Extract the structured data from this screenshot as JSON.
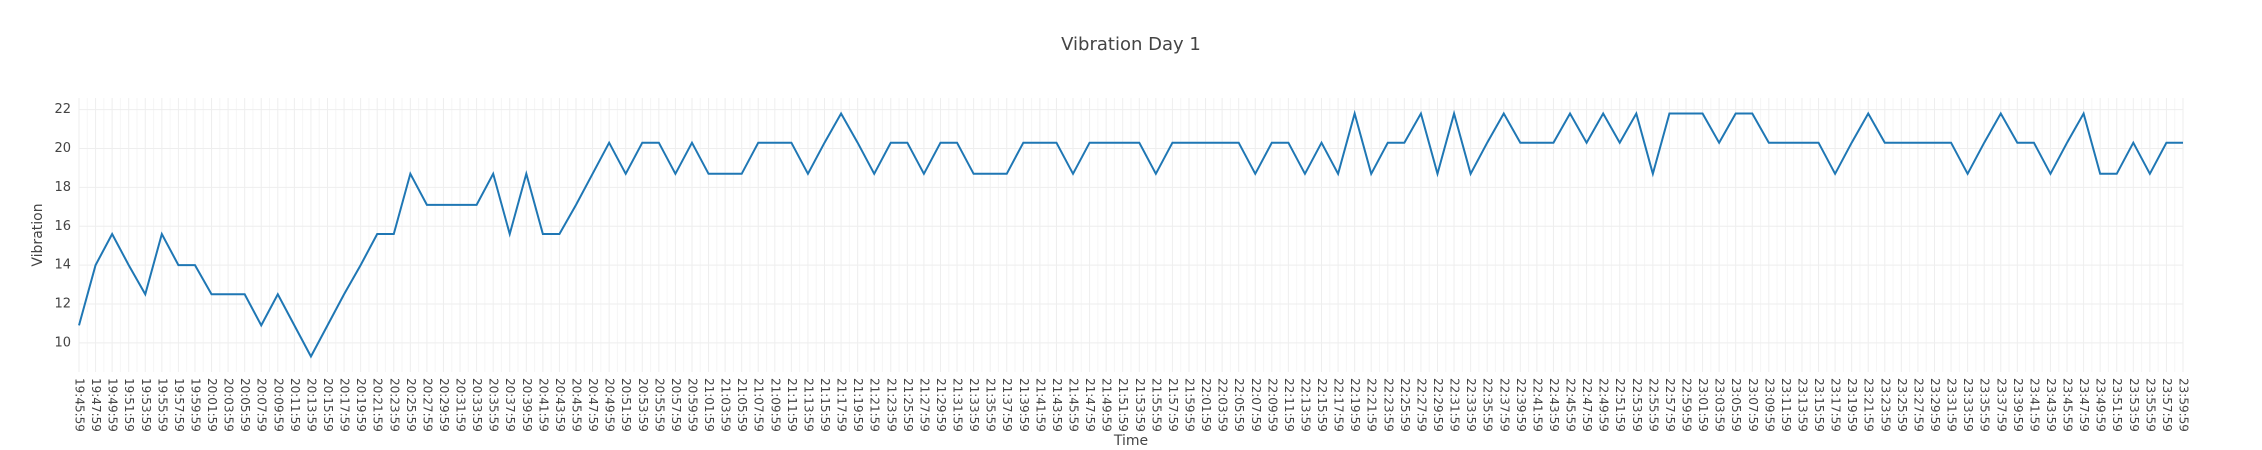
{
  "chart_data": {
    "type": "line",
    "title": "Vibration Day 1",
    "x_label": "Time",
    "y_label": "Vibration",
    "categories": [
      "19:45:59",
      "19:47:59",
      "19:49:59",
      "19:51:59",
      "19:53:59",
      "19:55:59",
      "19:57:59",
      "19:59:59",
      "20:01:59",
      "20:03:59",
      "20:05:59",
      "20:07:59",
      "20:09:59",
      "20:11:59",
      "20:13:59",
      "20:15:59",
      "20:17:59",
      "20:19:59",
      "20:21:59",
      "20:23:59",
      "20:25:59",
      "20:27:59",
      "20:29:59",
      "20:31:59",
      "20:33:59",
      "20:35:59",
      "20:37:59",
      "20:39:59",
      "20:41:59",
      "20:43:59",
      "20:45:59",
      "20:47:59",
      "20:49:59",
      "20:51:59",
      "20:53:59",
      "20:55:59",
      "20:57:59",
      "20:59:59",
      "21:01:59",
      "21:03:59",
      "21:05:59",
      "21:07:59",
      "21:09:59",
      "21:11:59",
      "21:13:59",
      "21:15:59",
      "21:17:59",
      "21:19:59",
      "21:21:59",
      "21:23:59",
      "21:25:59",
      "21:27:59",
      "21:29:59",
      "21:31:59",
      "21:33:59",
      "21:35:59",
      "21:37:59",
      "21:39:59",
      "21:41:59",
      "21:43:59",
      "21:45:59",
      "21:47:59",
      "21:49:59",
      "21:51:59",
      "21:53:59",
      "21:55:59",
      "21:57:59",
      "21:59:59",
      "22:01:59",
      "22:03:59",
      "22:05:59",
      "22:07:59",
      "22:09:59",
      "22:11:59",
      "22:13:59",
      "22:15:59",
      "22:17:59",
      "22:19:59",
      "22:21:59",
      "22:23:59",
      "22:25:59",
      "22:27:59",
      "22:29:59",
      "22:31:59",
      "22:33:59",
      "22:35:59",
      "22:37:59",
      "22:39:59",
      "22:41:59",
      "22:43:59",
      "22:45:59",
      "22:47:59",
      "22:49:59",
      "22:51:59",
      "22:53:59",
      "22:55:59",
      "22:57:59",
      "22:59:59",
      "23:01:59",
      "23:03:59",
      "23:05:59",
      "23:07:59",
      "23:09:59",
      "23:11:59",
      "23:13:59",
      "23:15:59",
      "23:17:59",
      "23:19:59",
      "23:21:59",
      "23:23:59",
      "23:25:59",
      "23:27:59",
      "23:29:59",
      "23:31:59",
      "23:33:59",
      "23:35:59",
      "23:37:59",
      "23:39:59",
      "23:41:59",
      "23:43:59",
      "23:45:59",
      "23:47:59",
      "23:49:59",
      "23:51:59",
      "23:53:59",
      "23:55:59",
      "23:57:59",
      "23:59:59"
    ],
    "series": [
      {
        "name": "Vibration",
        "color": "#1f77b4",
        "values": [
          10.9,
          14.0,
          15.6,
          14.0,
          12.5,
          15.6,
          14.0,
          14.0,
          12.5,
          12.5,
          12.5,
          10.9,
          12.5,
          10.9,
          9.3,
          10.9,
          12.5,
          14.0,
          15.6,
          15.6,
          18.7,
          17.1,
          17.1,
          17.1,
          17.1,
          18.7,
          15.6,
          18.7,
          15.6,
          15.6,
          17.1,
          18.7,
          20.3,
          18.7,
          20.3,
          20.3,
          18.7,
          20.3,
          18.7,
          18.7,
          18.7,
          20.3,
          20.3,
          20.3,
          18.7,
          20.3,
          21.8,
          20.3,
          18.7,
          20.3,
          20.3,
          18.7,
          20.3,
          20.3,
          18.7,
          18.7,
          18.7,
          20.3,
          20.3,
          20.3,
          18.7,
          20.3,
          20.3,
          20.3,
          20.3,
          18.7,
          20.3,
          20.3,
          20.3,
          20.3,
          20.3,
          18.7,
          20.3,
          20.3,
          18.7,
          20.3,
          18.7,
          21.8,
          18.7,
          20.3,
          20.3,
          21.8,
          18.7,
          21.8,
          18.7,
          20.3,
          21.8,
          20.3,
          20.3,
          20.3,
          21.8,
          20.3,
          21.8,
          20.3,
          21.8,
          18.7,
          21.8,
          21.8,
          21.8,
          20.3,
          21.8,
          21.8,
          20.3,
          20.3,
          20.3,
          20.3,
          18.7,
          20.3,
          21.8,
          20.3,
          20.3,
          20.3,
          20.3,
          20.3,
          18.7,
          20.3,
          21.8,
          20.3,
          20.3,
          18.7,
          20.3,
          21.8,
          18.7,
          18.7,
          20.3,
          18.7,
          20.3,
          20.3
        ]
      }
    ],
    "ylim": [
      8.5,
      22.6
    ],
    "yticks": [
      10,
      12,
      14,
      16,
      18,
      20,
      22
    ],
    "grid": true
  }
}
